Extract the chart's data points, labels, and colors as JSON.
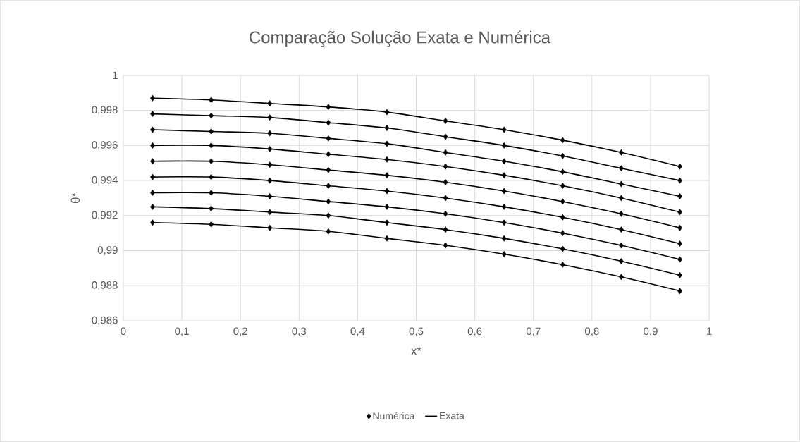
{
  "chart_data": {
    "type": "line",
    "title": "Comparação Solução Exata e Numérica",
    "xlabel": "x*",
    "ylabel": "θ*",
    "x": [
      0.05,
      0.15,
      0.25,
      0.35,
      0.45,
      0.55,
      0.65,
      0.75,
      0.85,
      0.95
    ],
    "xlim": [
      0,
      1
    ],
    "ylim": [
      0.986,
      1
    ],
    "xticks": [
      0,
      {
        "value": 0.1,
        "label": "0,1"
      },
      {
        "value": 0.2,
        "label": "0,2"
      },
      {
        "value": 0.3,
        "label": "0,3"
      },
      {
        "value": 0.4,
        "label": "0,4"
      },
      {
        "value": 0.5,
        "label": "0,5"
      },
      {
        "value": 0.6,
        "label": "0,6"
      },
      {
        "value": 0.7,
        "label": "0,7"
      },
      {
        "value": 0.8,
        "label": "0,8"
      },
      {
        "value": 0.9,
        "label": "0,9"
      },
      1
    ],
    "yticks": [
      {
        "value": 0.986,
        "label": "0,986"
      },
      {
        "value": 0.988,
        "label": "0,988"
      },
      {
        "value": 0.99,
        "label": "0,99"
      },
      {
        "value": 0.992,
        "label": "0,992"
      },
      {
        "value": 0.994,
        "label": "0,994"
      },
      {
        "value": 0.996,
        "label": "0,996"
      },
      {
        "value": 0.998,
        "label": "0,998"
      },
      1
    ],
    "grid": true,
    "legend": "bottom",
    "series": [
      {
        "type": "scatter",
        "marker": "diamond",
        "name": "Numérica",
        "color": "#000000",
        "values": [
          0.9987,
          0.9986,
          0.9984,
          0.9982,
          0.9979,
          0.9974,
          0.9969,
          0.9963,
          0.9956,
          0.9948
        ]
      },
      {
        "type": "scatter",
        "marker": "diamond",
        "color": "#000000",
        "values": [
          0.9978,
          0.9977,
          0.9976,
          0.9973,
          0.997,
          0.9965,
          0.996,
          0.9954,
          0.9947,
          0.994
        ]
      },
      {
        "type": "scatter",
        "marker": "diamond",
        "color": "#000000",
        "values": [
          0.9969,
          0.9968,
          0.9967,
          0.9964,
          0.9961,
          0.9956,
          0.9951,
          0.9945,
          0.9938,
          0.9931
        ]
      },
      {
        "type": "scatter",
        "marker": "diamond",
        "color": "#000000",
        "values": [
          0.996,
          0.996,
          0.9958,
          0.9955,
          0.9952,
          0.9948,
          0.9943,
          0.9937,
          0.993,
          0.9922
        ]
      },
      {
        "type": "scatter",
        "marker": "diamond",
        "color": "#000000",
        "values": [
          0.9951,
          0.9951,
          0.9949,
          0.9946,
          0.9943,
          0.9939,
          0.9934,
          0.9928,
          0.9921,
          0.9913
        ]
      },
      {
        "type": "scatter",
        "marker": "diamond",
        "color": "#000000",
        "values": [
          0.9942,
          0.9942,
          0.994,
          0.9937,
          0.9934,
          0.993,
          0.9925,
          0.9919,
          0.9912,
          0.9904
        ]
      },
      {
        "type": "scatter",
        "marker": "diamond",
        "color": "#000000",
        "values": [
          0.9933,
          0.9933,
          0.9931,
          0.9928,
          0.9925,
          0.9921,
          0.9916,
          0.991,
          0.9903,
          0.9895
        ]
      },
      {
        "type": "scatter",
        "marker": "diamond",
        "color": "#000000",
        "values": [
          0.9925,
          0.9924,
          0.9922,
          0.992,
          0.9916,
          0.9912,
          0.9907,
          0.9901,
          0.9894,
          0.9886
        ]
      },
      {
        "type": "scatter",
        "marker": "diamond",
        "color": "#000000",
        "values": [
          0.9916,
          0.9915,
          0.9913,
          0.9911,
          0.9907,
          0.9903,
          0.9898,
          0.9892,
          0.9885,
          0.9877
        ]
      },
      {
        "name": "Exata",
        "color": "#000000",
        "values": [
          0.9987,
          0.9986,
          0.9984,
          0.9982,
          0.9979,
          0.9974,
          0.9969,
          0.9963,
          0.9956,
          0.9948
        ]
      },
      {
        "color": "#000000",
        "values": [
          0.9978,
          0.9977,
          0.9976,
          0.9973,
          0.997,
          0.9965,
          0.996,
          0.9954,
          0.9947,
          0.994
        ]
      },
      {
        "color": "#000000",
        "values": [
          0.9969,
          0.9968,
          0.9967,
          0.9964,
          0.9961,
          0.9956,
          0.9951,
          0.9945,
          0.9938,
          0.9931
        ]
      },
      {
        "color": "#000000",
        "values": [
          0.996,
          0.996,
          0.9958,
          0.9955,
          0.9952,
          0.9948,
          0.9943,
          0.9937,
          0.993,
          0.9922
        ]
      },
      {
        "color": "#000000",
        "values": [
          0.9951,
          0.9951,
          0.9949,
          0.9946,
          0.9943,
          0.9939,
          0.9934,
          0.9928,
          0.9921,
          0.9913
        ]
      },
      {
        "color": "#000000",
        "values": [
          0.9942,
          0.9942,
          0.994,
          0.9937,
          0.9934,
          0.993,
          0.9925,
          0.9919,
          0.9912,
          0.9904
        ]
      },
      {
        "color": "#000000",
        "values": [
          0.9933,
          0.9933,
          0.9931,
          0.9928,
          0.9925,
          0.9921,
          0.9916,
          0.991,
          0.9903,
          0.9895
        ]
      },
      {
        "color": "#000000",
        "values": [
          0.9925,
          0.9924,
          0.9922,
          0.992,
          0.9916,
          0.9912,
          0.9907,
          0.9901,
          0.9894,
          0.9886
        ]
      },
      {
        "color": "#000000",
        "values": [
          0.9916,
          0.9915,
          0.9913,
          0.9911,
          0.9907,
          0.9903,
          0.9898,
          0.9892,
          0.9885,
          0.9877
        ]
      }
    ]
  }
}
